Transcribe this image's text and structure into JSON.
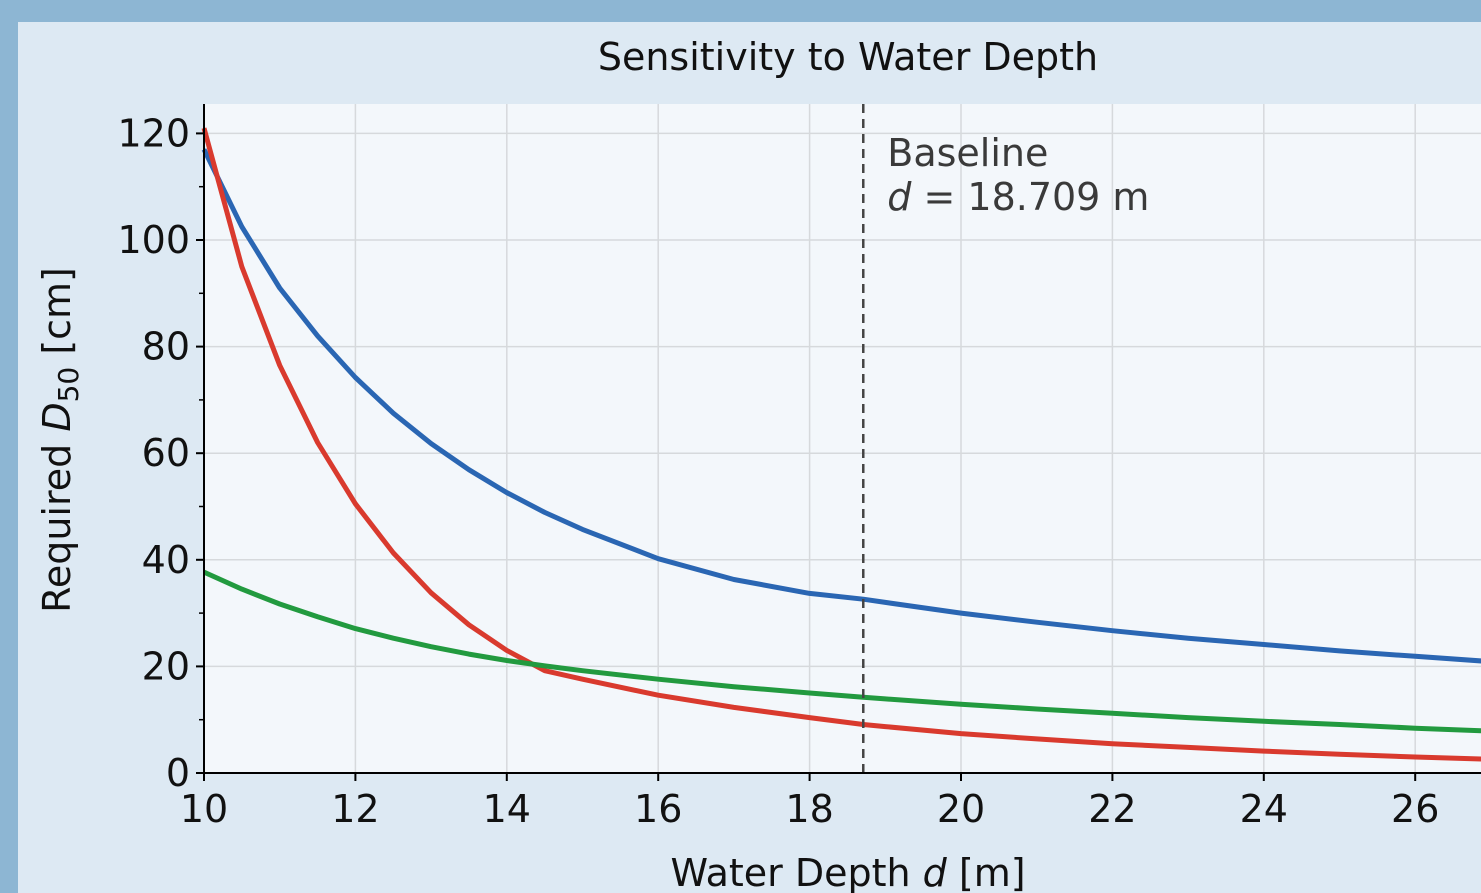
{
  "chart_data": {
    "type": "line",
    "title": "Sensitivity to Water Depth",
    "xlabel_parts": {
      "pre": "Water Depth ",
      "var": "d",
      "post": " [m]"
    },
    "ylabel_parts": {
      "pre": "Required ",
      "var": "D",
      "sub": "50",
      "post": " [cm]"
    },
    "xlim": [
      10,
      26.9
    ],
    "ylim": [
      0,
      125
    ],
    "xticks": [
      10,
      12,
      14,
      16,
      18,
      20,
      22,
      24,
      26
    ],
    "yticks": [
      0,
      20,
      40,
      60,
      80,
      100,
      120
    ],
    "grid": true,
    "baseline": {
      "x": 18.709,
      "label_line1": "Baseline",
      "label_var": "d",
      "label_value": " = 18.709 m",
      "color": "#444444"
    },
    "series": [
      {
        "color": "#2a66b3",
        "x": [
          10,
          10.5,
          11,
          11.5,
          12,
          12.5,
          13,
          13.5,
          14,
          14.5,
          15,
          16,
          17,
          18,
          18.709,
          19,
          20,
          21,
          22,
          23,
          24,
          25,
          26,
          26.9
        ],
        "y": [
          117,
          102.5,
          91,
          82,
          74.2,
          67.5,
          61.8,
          56.9,
          52.6,
          48.9,
          45.7,
          40.2,
          36.3,
          33.7,
          32.6,
          32,
          30,
          28.3,
          26.7,
          25.3,
          24.1,
          22.9,
          21.9,
          21
        ]
      },
      {
        "color": "#d93a2e",
        "x": [
          10,
          10.5,
          11,
          11.5,
          12,
          12.5,
          13,
          13.5,
          14,
          14.5,
          15,
          16,
          17,
          18,
          18.709,
          19,
          20,
          21,
          22,
          23,
          24,
          25,
          26,
          26.9
        ],
        "y": [
          121,
          95,
          76.5,
          62,
          50.5,
          41.3,
          33.8,
          27.8,
          23,
          19.2,
          17.6,
          14.6,
          12.3,
          10.4,
          9.1,
          8.7,
          7.4,
          6.4,
          5.5,
          4.8,
          4.1,
          3.5,
          3,
          2.6
        ]
      },
      {
        "color": "#229a3f",
        "x": [
          10,
          10.5,
          11,
          11.5,
          12,
          12.5,
          13,
          13.5,
          14,
          14.5,
          15,
          16,
          17,
          18,
          18.709,
          19,
          20,
          21,
          22,
          23,
          24,
          25,
          26,
          26.9
        ],
        "y": [
          37.7,
          34.5,
          31.7,
          29.3,
          27.1,
          25.3,
          23.7,
          22.3,
          21.1,
          20.1,
          19.2,
          17.6,
          16.2,
          15,
          14.2,
          13.9,
          12.9,
          12,
          11.2,
          10.4,
          9.7,
          9.1,
          8.4,
          7.9
        ]
      }
    ]
  }
}
